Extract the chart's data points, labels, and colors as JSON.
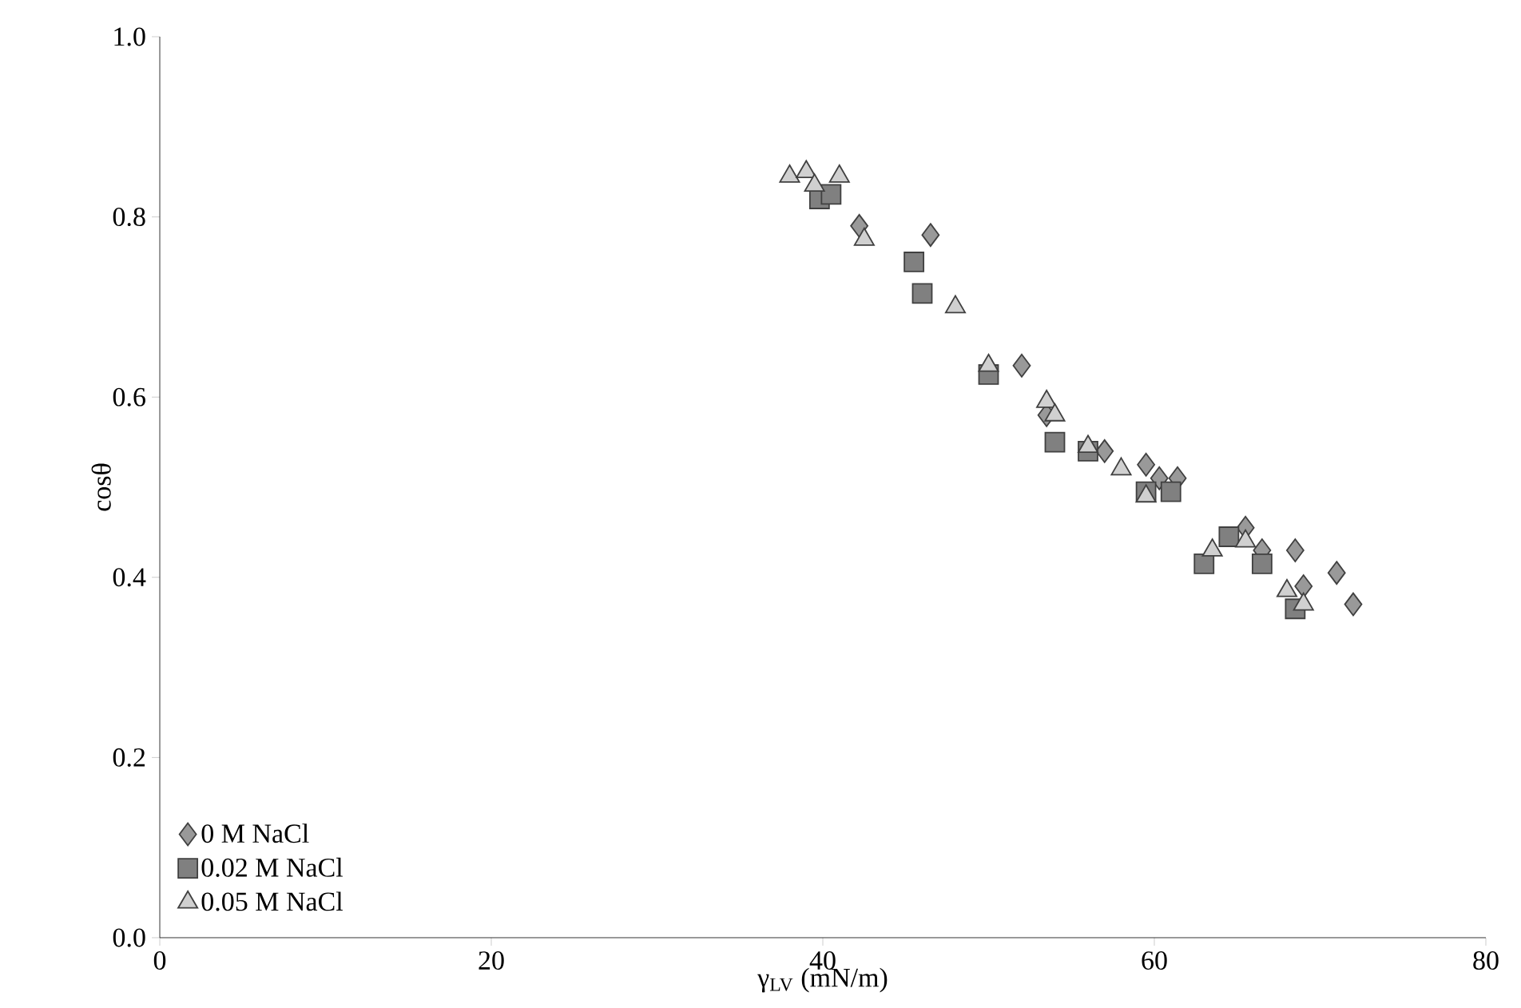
{
  "chart_data": {
    "type": "scatter",
    "xlabel": "γ$_{LV}$ (mN/m)",
    "ylabel": "cosθ",
    "xlim": [
      0,
      80
    ],
    "ylim": [
      0,
      1
    ],
    "xticks": [
      0,
      20,
      40,
      60,
      80
    ],
    "yticks": [
      {
        "value": 0,
        "label": "0.0"
      },
      0.2,
      0.4,
      0.6,
      0.8,
      {
        "value": 1,
        "label": "1.0"
      }
    ],
    "grid": false,
    "legend": "bottom left",
    "series": [
      {
        "name": "0 M NaCl",
        "color": "#999999",
        "marker": "diamond",
        "x": [
          42.2,
          46.5,
          52,
          53.5,
          57,
          59.5,
          60.3,
          61.4,
          65.5,
          66.5,
          68.5,
          69,
          71,
          72
        ],
        "values": [
          0.79,
          0.78,
          0.635,
          0.58,
          0.54,
          0.525,
          0.51,
          0.51,
          0.455,
          0.43,
          0.43,
          0.39,
          0.405,
          0.37
        ]
      },
      {
        "name": "0.02 M NaCl",
        "color": "#808080",
        "marker": "square",
        "x": [
          39.8,
          40.5,
          45.5,
          46,
          50,
          54,
          56,
          59.5,
          61,
          63,
          64.5,
          66.5,
          68.5
        ],
        "values": [
          0.82,
          0.825,
          0.75,
          0.715,
          0.625,
          0.55,
          0.54,
          0.495,
          0.495,
          0.415,
          0.445,
          0.415,
          0.365
        ]
      },
      {
        "name": "0.05 M NaCl",
        "color": "#d0d0d0",
        "marker": "triangle",
        "x": [
          38,
          39,
          39.5,
          41,
          42.5,
          48,
          50,
          53.5,
          54,
          56,
          58,
          59.5,
          63.5,
          65.5,
          68,
          69
        ],
        "values": [
          0.845,
          0.85,
          0.835,
          0.845,
          0.775,
          0.7,
          0.635,
          0.595,
          0.58,
          0.545,
          0.52,
          0.49,
          0.43,
          0.44,
          0.385,
          0.37
        ]
      }
    ]
  }
}
